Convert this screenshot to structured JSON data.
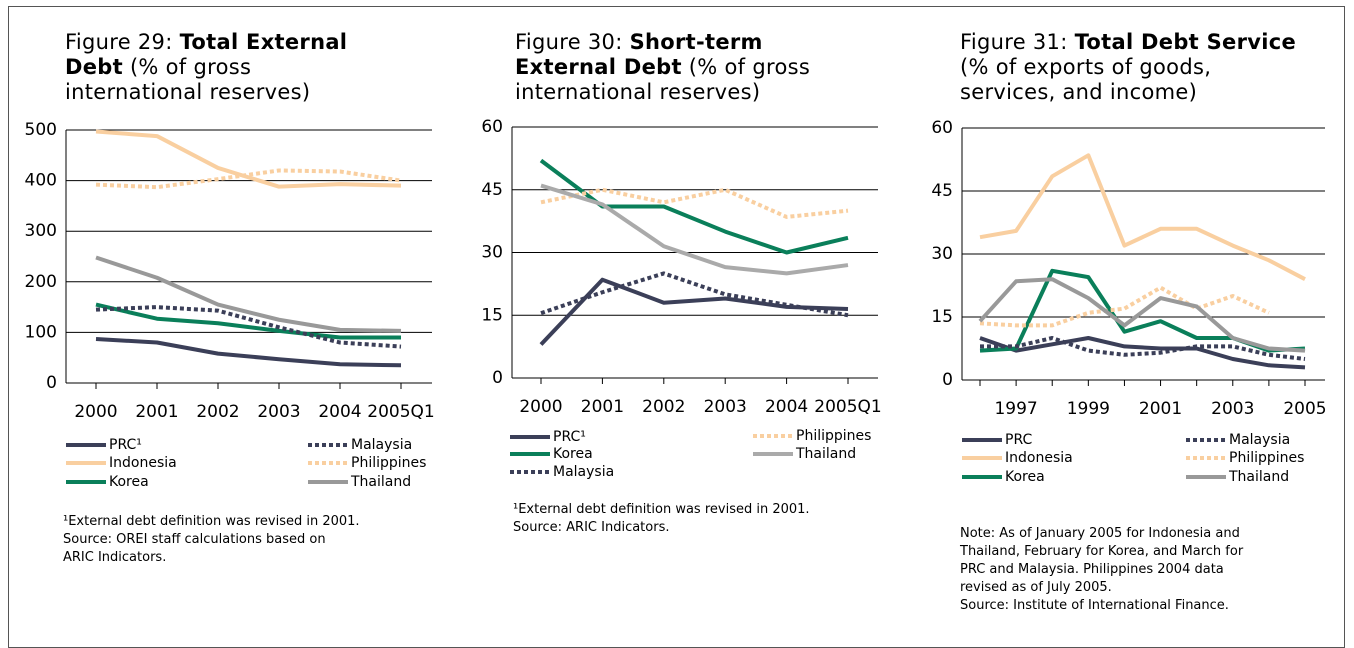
{
  "chart_data": [
    {
      "type": "line",
      "figure": "Figure 29:",
      "title": "Total External Debt",
      "subtitle": "(% of gross international reserves)",
      "categories": [
        "2000",
        "2001",
        "2002",
        "2003",
        "2004",
        "2005Q1"
      ],
      "ylim": [
        0,
        500
      ],
      "yticks": [
        0,
        100,
        200,
        300,
        400,
        500
      ],
      "grid": true,
      "series": [
        {
          "name": "PRC¹",
          "color": "#3b3f58",
          "values": [
            87,
            80,
            58,
            47,
            37,
            35
          ]
        },
        {
          "name": "Indonesia",
          "color": "#f9cfa0",
          "values": [
            497,
            488,
            425,
            388,
            393,
            390
          ]
        },
        {
          "name": "Korea",
          "color": "#0a7f5a",
          "values": [
            155,
            127,
            118,
            103,
            90,
            90
          ]
        },
        {
          "name": "Malaysia",
          "color": "#3b3f58",
          "dashed": true,
          "values": [
            145,
            150,
            143,
            110,
            80,
            72
          ]
        },
        {
          "name": "Philippines",
          "color": "#f9cfa0",
          "dashed": true,
          "values": [
            392,
            387,
            403,
            420,
            418,
            400
          ]
        },
        {
          "name": "Thailand",
          "color": "#999999",
          "values": [
            248,
            208,
            155,
            125,
            105,
            103
          ]
        }
      ],
      "notes": [
        "¹External debt definition was revised in 2001.",
        "Source: OREI staff calculations based on",
        "ARIC Indicators."
      ]
    },
    {
      "type": "line",
      "figure": "Figure 30:",
      "title": "Short-term External Debt",
      "subtitle": "(% of gross international reserves)",
      "categories": [
        "2000",
        "2001",
        "2002",
        "2003",
        "2004",
        "2005Q1"
      ],
      "ylim": [
        0,
        60
      ],
      "yticks": [
        0,
        15,
        30,
        45,
        60
      ],
      "grid": true,
      "series": [
        {
          "name": "PRC¹",
          "color": "#3b3f58",
          "values": [
            8,
            23.5,
            18,
            19,
            17,
            16.5
          ]
        },
        {
          "name": "Korea",
          "color": "#0a7f5a",
          "values": [
            52,
            41,
            41,
            35,
            30,
            33.5
          ]
        },
        {
          "name": "Malaysia",
          "color": "#3b3f58",
          "dashed": true,
          "values": [
            15.5,
            20.5,
            25,
            20,
            17.5,
            15
          ]
        },
        {
          "name": "Philippines",
          "color": "#f9cfa0",
          "dashed": true,
          "values": [
            42,
            45,
            42,
            45,
            38.5,
            40
          ]
        },
        {
          "name": "Thailand",
          "color": "#aaaaaa",
          "values": [
            46,
            41.5,
            31.5,
            26.5,
            25,
            27
          ]
        }
      ],
      "notes": [
        "¹External debt definition was revised in 2001.",
        "Source: ARIC Indicators."
      ]
    },
    {
      "type": "line",
      "figure": "Figure 31:",
      "title": "Total Debt Service",
      "subtitle": "(% of exports of goods, services, and income)",
      "categories": [
        null,
        "1997",
        null,
        "1999",
        null,
        "2001",
        null,
        "2003",
        null,
        "2005"
      ],
      "ylim": [
        0,
        60
      ],
      "yticks": [
        0,
        15,
        30,
        45,
        60
      ],
      "grid": true,
      "series": [
        {
          "name": "PRC",
          "color": "#3b3f58",
          "values": [
            10,
            7,
            8.5,
            10,
            8,
            7.5,
            7.5,
            5,
            3.5,
            3
          ]
        },
        {
          "name": "Indonesia",
          "color": "#f9cfa0",
          "values": [
            34,
            35.5,
            48.5,
            53.5,
            32,
            36,
            36,
            32,
            28.5,
            24
          ]
        },
        {
          "name": "Korea",
          "color": "#0a7f5a",
          "values": [
            7,
            7.5,
            26,
            24.5,
            11.5,
            14,
            10,
            10,
            7,
            7.5
          ]
        },
        {
          "name": "Malaysia",
          "color": "#3b3f58",
          "dashed": true,
          "values": [
            8,
            8,
            10,
            7,
            6,
            6.5,
            8,
            8,
            6,
            5
          ]
        },
        {
          "name": "Philippines",
          "color": "#f9cfa0",
          "dashed": true,
          "values": [
            13.5,
            13,
            13,
            16,
            17,
            22,
            17,
            20,
            16,
            null
          ]
        },
        {
          "name": "Thailand",
          "color": "#999999",
          "values": [
            14,
            23.5,
            24,
            19.5,
            13,
            19.5,
            17.5,
            10,
            7.5,
            7
          ]
        }
      ],
      "notes": [
        "Note: As of January 2005 for Indonesia and",
        "Thailand, February for Korea, and March for",
        "PRC and Malaysia. Philippines 2004 data",
        "revised as of July 2005.",
        "Source: Institute of International Finance."
      ]
    }
  ]
}
